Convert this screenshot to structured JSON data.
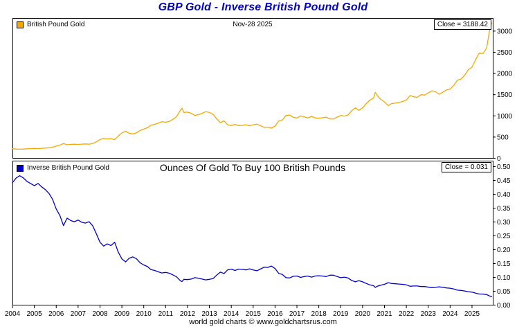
{
  "page": {
    "title": "GBP Gold - Inverse British Pound Gold",
    "title_color": "#0000CC",
    "footer": "world gold charts © www.goldchartsrus.com"
  },
  "chart_data": [
    {
      "type": "line",
      "name": "British Pound Gold",
      "legend": "British Pound Gold",
      "date_label": "Nov-28  2025",
      "close_label": "Close = 3188.42",
      "line_color": "#F5A800",
      "xlabel": "",
      "ylabel": "",
      "xlim": [
        2004,
        2025.95
      ],
      "ylim": [
        0,
        3300
      ],
      "grid": false,
      "legend_position": "top-left",
      "yticks": {
        "values": [
          0,
          500,
          1000,
          1500,
          2000,
          2500,
          3000
        ],
        "labels": [
          "0",
          "500",
          "1000",
          "1500",
          "2000",
          "2500",
          "3000"
        ]
      },
      "points": [
        [
          2004.0,
          226
        ],
        [
          2004.17,
          218
        ],
        [
          2004.33,
          214
        ],
        [
          2004.5,
          218
        ],
        [
          2004.67,
          224
        ],
        [
          2004.83,
          228
        ],
        [
          2005.0,
          232
        ],
        [
          2005.17,
          228
        ],
        [
          2005.33,
          234
        ],
        [
          2005.5,
          240
        ],
        [
          2005.67,
          248
        ],
        [
          2005.83,
          262
        ],
        [
          2006.0,
          288
        ],
        [
          2006.17,
          310
        ],
        [
          2006.33,
          348
        ],
        [
          2006.5,
          318
        ],
        [
          2006.67,
          328
        ],
        [
          2006.83,
          332
        ],
        [
          2007.0,
          326
        ],
        [
          2007.17,
          334
        ],
        [
          2007.33,
          338
        ],
        [
          2007.5,
          332
        ],
        [
          2007.67,
          350
        ],
        [
          2007.83,
          388
        ],
        [
          2008.0,
          440
        ],
        [
          2008.17,
          470
        ],
        [
          2008.33,
          452
        ],
        [
          2008.5,
          466
        ],
        [
          2008.67,
          440
        ],
        [
          2008.83,
          520
        ],
        [
          2009.0,
          600
        ],
        [
          2009.17,
          640
        ],
        [
          2009.33,
          590
        ],
        [
          2009.5,
          575
        ],
        [
          2009.67,
          600
        ],
        [
          2009.83,
          655
        ],
        [
          2010.0,
          690
        ],
        [
          2010.17,
          720
        ],
        [
          2010.33,
          780
        ],
        [
          2010.5,
          800
        ],
        [
          2010.67,
          830
        ],
        [
          2010.83,
          865
        ],
        [
          2011.0,
          850
        ],
        [
          2011.17,
          870
        ],
        [
          2011.33,
          920
        ],
        [
          2011.5,
          980
        ],
        [
          2011.67,
          1130
        ],
        [
          2011.75,
          1180
        ],
        [
          2011.83,
          1080
        ],
        [
          2012.0,
          1090
        ],
        [
          2012.17,
          1060
        ],
        [
          2012.33,
          1010
        ],
        [
          2012.5,
          1030
        ],
        [
          2012.67,
          1060
        ],
        [
          2012.83,
          1100
        ],
        [
          2013.0,
          1080
        ],
        [
          2013.17,
          1040
        ],
        [
          2013.33,
          930
        ],
        [
          2013.5,
          840
        ],
        [
          2013.67,
          880
        ],
        [
          2013.83,
          790
        ],
        [
          2014.0,
          770
        ],
        [
          2014.17,
          800
        ],
        [
          2014.33,
          770
        ],
        [
          2014.5,
          775
        ],
        [
          2014.67,
          790
        ],
        [
          2014.83,
          765
        ],
        [
          2015.0,
          790
        ],
        [
          2015.17,
          805
        ],
        [
          2015.33,
          770
        ],
        [
          2015.5,
          730
        ],
        [
          2015.67,
          735
        ],
        [
          2015.83,
          710
        ],
        [
          2016.0,
          760
        ],
        [
          2016.17,
          880
        ],
        [
          2016.33,
          900
        ],
        [
          2016.5,
          1010
        ],
        [
          2016.67,
          1020
        ],
        [
          2016.83,
          965
        ],
        [
          2017.0,
          950
        ],
        [
          2017.17,
          1000
        ],
        [
          2017.33,
          975
        ],
        [
          2017.5,
          950
        ],
        [
          2017.67,
          990
        ],
        [
          2017.83,
          950
        ],
        [
          2018.0,
          945
        ],
        [
          2018.17,
          955
        ],
        [
          2018.33,
          970
        ],
        [
          2018.5,
          930
        ],
        [
          2018.67,
          925
        ],
        [
          2018.83,
          970
        ],
        [
          2019.0,
          1010
        ],
        [
          2019.17,
          995
        ],
        [
          2019.33,
          1020
        ],
        [
          2019.5,
          1120
        ],
        [
          2019.67,
          1190
        ],
        [
          2019.83,
          1130
        ],
        [
          2020.0,
          1190
        ],
        [
          2020.17,
          1290
        ],
        [
          2020.33,
          1370
        ],
        [
          2020.5,
          1420
        ],
        [
          2020.58,
          1555
        ],
        [
          2020.67,
          1480
        ],
        [
          2020.83,
          1390
        ],
        [
          2021.0,
          1330
        ],
        [
          2021.17,
          1240
        ],
        [
          2021.33,
          1290
        ],
        [
          2021.5,
          1300
        ],
        [
          2021.67,
          1320
        ],
        [
          2021.83,
          1340
        ],
        [
          2022.0,
          1370
        ],
        [
          2022.17,
          1480
        ],
        [
          2022.33,
          1450
        ],
        [
          2022.5,
          1440
        ],
        [
          2022.67,
          1500
        ],
        [
          2022.83,
          1490
        ],
        [
          2023.0,
          1540
        ],
        [
          2023.17,
          1590
        ],
        [
          2023.33,
          1570
        ],
        [
          2023.5,
          1510
        ],
        [
          2023.67,
          1560
        ],
        [
          2023.83,
          1610
        ],
        [
          2024.0,
          1630
        ],
        [
          2024.17,
          1720
        ],
        [
          2024.33,
          1840
        ],
        [
          2024.5,
          1870
        ],
        [
          2024.67,
          1960
        ],
        [
          2024.83,
          2090
        ],
        [
          2025.0,
          2150
        ],
        [
          2025.17,
          2330
        ],
        [
          2025.33,
          2480
        ],
        [
          2025.5,
          2470
        ],
        [
          2025.67,
          2600
        ],
        [
          2025.75,
          2850
        ],
        [
          2025.83,
          3100
        ],
        [
          2025.9,
          3188.42
        ]
      ]
    },
    {
      "type": "line",
      "name": "Inverse British Pound Gold",
      "legend": "Inverse British Pound Gold",
      "annotation": "Ounces Of Gold To Buy 100 British Pounds",
      "close_label": "Close = 0.031",
      "line_color": "#0000CC",
      "xlabel": "",
      "ylabel": "",
      "xlim": [
        2004,
        2025.95
      ],
      "ylim": [
        0,
        0.52
      ],
      "grid": false,
      "legend_position": "top-left",
      "yticks": {
        "values": [
          0.0,
          0.05,
          0.1,
          0.15,
          0.2,
          0.25,
          0.3,
          0.35,
          0.4,
          0.45,
          0.5
        ],
        "labels": [
          "0.00",
          "0.05",
          "0.10",
          "0.15",
          "0.20",
          "0.25",
          "0.30",
          "0.35",
          "0.40",
          "0.45",
          "0.50"
        ]
      },
      "xticks": {
        "values": [
          2004,
          2005,
          2006,
          2007,
          2008,
          2009,
          2010,
          2011,
          2012,
          2013,
          2014,
          2015,
          2016,
          2017,
          2018,
          2019,
          2020,
          2021,
          2022,
          2023,
          2024,
          2025
        ],
        "labels": [
          "2004",
          "2005",
          "2006",
          "2007",
          "2008",
          "2009",
          "2010",
          "2011",
          "2012",
          "2013",
          "2014",
          "2015",
          "2016",
          "2017",
          "2018",
          "2019",
          "2020",
          "2021",
          "2022",
          "2023",
          "2024",
          "2025"
        ]
      },
      "points": [
        [
          2004.0,
          0.442
        ],
        [
          2004.17,
          0.459
        ],
        [
          2004.33,
          0.467
        ],
        [
          2004.5,
          0.459
        ],
        [
          2004.67,
          0.446
        ],
        [
          2004.83,
          0.439
        ],
        [
          2005.0,
          0.431
        ],
        [
          2005.17,
          0.439
        ],
        [
          2005.33,
          0.427
        ],
        [
          2005.5,
          0.417
        ],
        [
          2005.67,
          0.403
        ],
        [
          2005.83,
          0.382
        ],
        [
          2006.0,
          0.347
        ],
        [
          2006.17,
          0.323
        ],
        [
          2006.33,
          0.287
        ],
        [
          2006.5,
          0.314
        ],
        [
          2006.67,
          0.305
        ],
        [
          2006.83,
          0.301
        ],
        [
          2007.0,
          0.307
        ],
        [
          2007.17,
          0.299
        ],
        [
          2007.33,
          0.296
        ],
        [
          2007.5,
          0.301
        ],
        [
          2007.67,
          0.286
        ],
        [
          2007.83,
          0.258
        ],
        [
          2008.0,
          0.227
        ],
        [
          2008.17,
          0.213
        ],
        [
          2008.33,
          0.221
        ],
        [
          2008.5,
          0.215
        ],
        [
          2008.67,
          0.227
        ],
        [
          2008.83,
          0.192
        ],
        [
          2009.0,
          0.167
        ],
        [
          2009.17,
          0.156
        ],
        [
          2009.33,
          0.169
        ],
        [
          2009.5,
          0.174
        ],
        [
          2009.67,
          0.167
        ],
        [
          2009.83,
          0.153
        ],
        [
          2010.0,
          0.145
        ],
        [
          2010.17,
          0.139
        ],
        [
          2010.33,
          0.128
        ],
        [
          2010.5,
          0.125
        ],
        [
          2010.67,
          0.12
        ],
        [
          2010.83,
          0.116
        ],
        [
          2011.0,
          0.118
        ],
        [
          2011.17,
          0.115
        ],
        [
          2011.33,
          0.109
        ],
        [
          2011.5,
          0.102
        ],
        [
          2011.67,
          0.088
        ],
        [
          2011.75,
          0.085
        ],
        [
          2011.83,
          0.093
        ],
        [
          2012.0,
          0.092
        ],
        [
          2012.17,
          0.094
        ],
        [
          2012.33,
          0.099
        ],
        [
          2012.5,
          0.097
        ],
        [
          2012.67,
          0.094
        ],
        [
          2012.83,
          0.091
        ],
        [
          2013.0,
          0.093
        ],
        [
          2013.17,
          0.096
        ],
        [
          2013.33,
          0.108
        ],
        [
          2013.5,
          0.119
        ],
        [
          2013.67,
          0.114
        ],
        [
          2013.83,
          0.127
        ],
        [
          2014.0,
          0.13
        ],
        [
          2014.17,
          0.125
        ],
        [
          2014.33,
          0.13
        ],
        [
          2014.5,
          0.129
        ],
        [
          2014.67,
          0.127
        ],
        [
          2014.83,
          0.131
        ],
        [
          2015.0,
          0.127
        ],
        [
          2015.17,
          0.124
        ],
        [
          2015.33,
          0.13
        ],
        [
          2015.5,
          0.137
        ],
        [
          2015.67,
          0.136
        ],
        [
          2015.83,
          0.141
        ],
        [
          2016.0,
          0.132
        ],
        [
          2016.17,
          0.114
        ],
        [
          2016.33,
          0.111
        ],
        [
          2016.5,
          0.099
        ],
        [
          2016.67,
          0.098
        ],
        [
          2016.83,
          0.104
        ],
        [
          2017.0,
          0.105
        ],
        [
          2017.17,
          0.1
        ],
        [
          2017.33,
          0.103
        ],
        [
          2017.5,
          0.105
        ],
        [
          2017.67,
          0.101
        ],
        [
          2017.83,
          0.105
        ],
        [
          2018.0,
          0.106
        ],
        [
          2018.17,
          0.105
        ],
        [
          2018.33,
          0.103
        ],
        [
          2018.5,
          0.108
        ],
        [
          2018.67,
          0.108
        ],
        [
          2018.83,
          0.103
        ],
        [
          2019.0,
          0.099
        ],
        [
          2019.17,
          0.101
        ],
        [
          2019.33,
          0.098
        ],
        [
          2019.5,
          0.089
        ],
        [
          2019.67,
          0.084
        ],
        [
          2019.83,
          0.088
        ],
        [
          2020.0,
          0.084
        ],
        [
          2020.17,
          0.078
        ],
        [
          2020.33,
          0.073
        ],
        [
          2020.5,
          0.07
        ],
        [
          2020.58,
          0.064
        ],
        [
          2020.67,
          0.068
        ],
        [
          2020.83,
          0.072
        ],
        [
          2021.0,
          0.075
        ],
        [
          2021.17,
          0.081
        ],
        [
          2021.33,
          0.078
        ],
        [
          2021.5,
          0.077
        ],
        [
          2021.67,
          0.076
        ],
        [
          2021.83,
          0.075
        ],
        [
          2022.0,
          0.073
        ],
        [
          2022.17,
          0.068
        ],
        [
          2022.33,
          0.069
        ],
        [
          2022.5,
          0.069
        ],
        [
          2022.67,
          0.067
        ],
        [
          2022.83,
          0.067
        ],
        [
          2023.0,
          0.065
        ],
        [
          2023.17,
          0.063
        ],
        [
          2023.33,
          0.064
        ],
        [
          2023.5,
          0.066
        ],
        [
          2023.67,
          0.064
        ],
        [
          2023.83,
          0.062
        ],
        [
          2024.0,
          0.061
        ],
        [
          2024.17,
          0.058
        ],
        [
          2024.33,
          0.054
        ],
        [
          2024.5,
          0.053
        ],
        [
          2024.67,
          0.051
        ],
        [
          2024.83,
          0.048
        ],
        [
          2025.0,
          0.047
        ],
        [
          2025.17,
          0.043
        ],
        [
          2025.33,
          0.04
        ],
        [
          2025.5,
          0.04
        ],
        [
          2025.67,
          0.038
        ],
        [
          2025.75,
          0.035
        ],
        [
          2025.83,
          0.032
        ],
        [
          2025.9,
          0.031
        ]
      ]
    }
  ]
}
